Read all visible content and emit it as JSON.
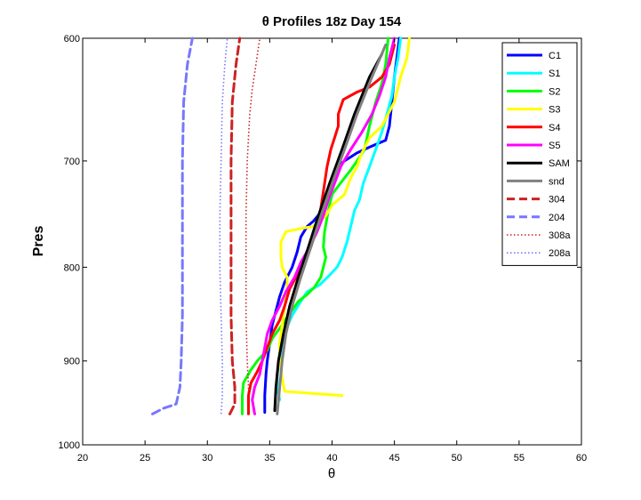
{
  "chart_data": {
    "type": "line",
    "title": "θ Profiles 18z Day 154",
    "xlabel": "θ",
    "ylabel": "Pres",
    "xlim": [
      20,
      60
    ],
    "ylim": [
      600,
      1000
    ],
    "y_axis_reversed": true,
    "y_axis_scale": "log",
    "x_ticks": [
      20,
      25,
      30,
      35,
      40,
      45,
      50,
      55,
      60
    ],
    "y_ticks": [
      600,
      700,
      800,
      900,
      1000
    ],
    "grid": false,
    "legend_position": "top-right",
    "series": [
      {
        "name": "C1",
        "color": "#0000ff",
        "style": "solid",
        "points": [
          [
            34.6,
            960
          ],
          [
            34.6,
            940
          ],
          [
            34.7,
            915
          ],
          [
            34.8,
            900
          ],
          [
            35.0,
            880
          ],
          [
            35.2,
            860
          ],
          [
            35.5,
            845
          ],
          [
            35.8,
            830
          ],
          [
            36.2,
            815
          ],
          [
            36.8,
            800
          ],
          [
            37.2,
            785
          ],
          [
            37.5,
            770
          ],
          [
            38.0,
            760
          ],
          [
            38.5,
            755
          ],
          [
            39.0,
            748
          ],
          [
            39.5,
            735
          ],
          [
            40.0,
            720
          ],
          [
            40.4,
            705
          ],
          [
            41.0,
            700
          ],
          [
            42.0,
            693
          ],
          [
            43.0,
            688
          ],
          [
            44.3,
            682
          ],
          [
            44.6,
            670
          ],
          [
            44.8,
            650
          ],
          [
            45.0,
            630
          ],
          [
            45.2,
            615
          ],
          [
            45.4,
            600
          ]
        ]
      },
      {
        "name": "S1",
        "color": "#00ffff",
        "style": "solid",
        "points": [
          [
            35.8,
            945
          ],
          [
            35.6,
            930
          ],
          [
            35.6,
            915
          ],
          [
            35.8,
            900
          ],
          [
            36.0,
            880
          ],
          [
            36.3,
            865
          ],
          [
            36.8,
            850
          ],
          [
            37.5,
            835
          ],
          [
            38.0,
            825
          ],
          [
            39.0,
            818
          ],
          [
            39.8,
            808
          ],
          [
            40.4,
            800
          ],
          [
            40.8,
            790
          ],
          [
            41.2,
            775
          ],
          [
            41.5,
            760
          ],
          [
            41.8,
            745
          ],
          [
            42.2,
            735
          ],
          [
            42.5,
            720
          ],
          [
            43.0,
            705
          ],
          [
            43.5,
            690
          ],
          [
            44.0,
            675
          ],
          [
            44.4,
            660
          ],
          [
            44.8,
            645
          ],
          [
            45.0,
            630
          ],
          [
            45.3,
            615
          ],
          [
            45.5,
            600
          ]
        ]
      },
      {
        "name": "S2",
        "color": "#00ff00",
        "style": "solid",
        "points": [
          [
            32.8,
            962
          ],
          [
            32.8,
            940
          ],
          [
            32.9,
            925
          ],
          [
            33.5,
            910
          ],
          [
            34.0,
            900
          ],
          [
            34.8,
            888
          ],
          [
            35.2,
            875
          ],
          [
            36.0,
            860
          ],
          [
            36.6,
            848
          ],
          [
            37.3,
            835
          ],
          [
            38.0,
            828
          ],
          [
            38.6,
            820
          ],
          [
            39.1,
            810
          ],
          [
            39.3,
            800
          ],
          [
            39.5,
            790
          ],
          [
            39.3,
            780
          ],
          [
            39.4,
            765
          ],
          [
            39.7,
            745
          ],
          [
            40.0,
            730
          ],
          [
            40.8,
            718
          ],
          [
            41.5,
            708
          ],
          [
            42.0,
            700
          ],
          [
            42.6,
            690
          ],
          [
            43.0,
            670
          ],
          [
            43.5,
            650
          ],
          [
            44.0,
            635
          ],
          [
            44.3,
            620
          ],
          [
            44.5,
            600
          ]
        ]
      },
      {
        "name": "S3",
        "color": "#ffff00",
        "style": "solid",
        "points": [
          [
            40.8,
            940
          ],
          [
            38.0,
            937
          ],
          [
            36.2,
            935
          ],
          [
            36.0,
            920
          ],
          [
            35.8,
            900
          ],
          [
            35.8,
            880
          ],
          [
            36.0,
            860
          ],
          [
            36.2,
            840
          ],
          [
            36.4,
            822
          ],
          [
            36.4,
            810
          ],
          [
            36.0,
            800
          ],
          [
            35.9,
            790
          ],
          [
            35.9,
            775
          ],
          [
            36.3,
            765
          ],
          [
            37.5,
            762
          ],
          [
            38.5,
            760
          ],
          [
            39.5,
            750
          ],
          [
            40.0,
            740
          ],
          [
            41.0,
            730
          ],
          [
            41.5,
            715
          ],
          [
            42.0,
            705
          ],
          [
            42.3,
            695
          ],
          [
            43.0,
            680
          ],
          [
            44.0,
            670
          ],
          [
            45.0,
            650
          ],
          [
            45.5,
            630
          ],
          [
            46.0,
            615
          ],
          [
            46.2,
            600
          ]
        ]
      },
      {
        "name": "S4",
        "color": "#ff0000",
        "style": "solid",
        "points": [
          [
            33.3,
            962
          ],
          [
            33.3,
            940
          ],
          [
            33.5,
            925
          ],
          [
            34.0,
            912
          ],
          [
            34.4,
            900
          ],
          [
            34.8,
            885
          ],
          [
            35.2,
            870
          ],
          [
            35.8,
            855
          ],
          [
            36.2,
            840
          ],
          [
            36.6,
            822
          ],
          [
            37.2,
            808
          ],
          [
            37.8,
            795
          ],
          [
            38.3,
            780
          ],
          [
            38.7,
            765
          ],
          [
            39.0,
            750
          ],
          [
            39.2,
            735
          ],
          [
            39.4,
            720
          ],
          [
            39.6,
            705
          ],
          [
            39.9,
            690
          ],
          [
            40.2,
            680
          ],
          [
            40.5,
            670
          ],
          [
            40.5,
            660
          ],
          [
            40.9,
            648
          ],
          [
            42.0,
            642
          ],
          [
            43.0,
            638
          ],
          [
            44.0,
            630
          ],
          [
            44.6,
            620
          ],
          [
            45.0,
            605
          ]
        ]
      },
      {
        "name": "S5",
        "color": "#ff00ff",
        "style": "solid",
        "points": [
          [
            33.8,
            962
          ],
          [
            33.6,
            945
          ],
          [
            33.8,
            930
          ],
          [
            34.2,
            915
          ],
          [
            34.4,
            900
          ],
          [
            34.6,
            885
          ],
          [
            34.8,
            870
          ],
          [
            35.2,
            855
          ],
          [
            35.8,
            840
          ],
          [
            36.3,
            825
          ],
          [
            37.0,
            810
          ],
          [
            37.5,
            795
          ],
          [
            38.2,
            780
          ],
          [
            38.8,
            765
          ],
          [
            39.3,
            750
          ],
          [
            39.7,
            735
          ],
          [
            40.2,
            720
          ],
          [
            40.7,
            705
          ],
          [
            41.5,
            690
          ],
          [
            42.4,
            675
          ],
          [
            43.2,
            660
          ],
          [
            43.8,
            645
          ],
          [
            44.3,
            630
          ],
          [
            44.6,
            615
          ],
          [
            45.0,
            600
          ]
        ]
      },
      {
        "name": "SAM",
        "color": "#000000",
        "style": "solid",
        "points": [
          [
            35.4,
            958
          ],
          [
            35.5,
            930
          ],
          [
            35.7,
            900
          ],
          [
            36.1,
            870
          ],
          [
            36.6,
            840
          ],
          [
            37.3,
            810
          ],
          [
            38.1,
            780
          ],
          [
            38.9,
            750
          ],
          [
            39.8,
            720
          ],
          [
            40.8,
            690
          ],
          [
            41.8,
            660
          ],
          [
            43.0,
            630
          ],
          [
            44.0,
            612
          ]
        ]
      },
      {
        "name": "snd",
        "color": "#808080",
        "style": "solid",
        "points": [
          [
            35.6,
            962
          ],
          [
            35.8,
            930
          ],
          [
            36.0,
            900
          ],
          [
            36.3,
            870
          ],
          [
            36.8,
            840
          ],
          [
            37.5,
            810
          ],
          [
            38.3,
            780
          ],
          [
            39.1,
            750
          ],
          [
            40.0,
            720
          ],
          [
            41.0,
            690
          ],
          [
            42.0,
            660
          ],
          [
            43.2,
            630
          ],
          [
            44.3,
            605
          ]
        ]
      },
      {
        "name": "304",
        "color": "#cc2222",
        "style": "dashed",
        "points": [
          [
            31.8,
            962
          ],
          [
            32.2,
            950
          ],
          [
            32.2,
            930
          ],
          [
            32.0,
            900
          ],
          [
            31.9,
            850
          ],
          [
            31.9,
            800
          ],
          [
            31.9,
            750
          ],
          [
            31.9,
            700
          ],
          [
            32.0,
            650
          ],
          [
            32.3,
            620
          ],
          [
            32.6,
            600
          ]
        ]
      },
      {
        "name": "204",
        "color": "#7777ff",
        "style": "dashed",
        "points": [
          [
            25.6,
            962
          ],
          [
            26.5,
            955
          ],
          [
            27.5,
            950
          ],
          [
            27.8,
            930
          ],
          [
            27.9,
            900
          ],
          [
            28.0,
            850
          ],
          [
            28.0,
            800
          ],
          [
            28.0,
            750
          ],
          [
            28.0,
            700
          ],
          [
            28.1,
            650
          ],
          [
            28.4,
            620
          ],
          [
            28.8,
            600
          ]
        ]
      },
      {
        "name": "308a",
        "color": "#cc2222",
        "style": "dotted",
        "points": [
          [
            33.3,
            962
          ],
          [
            33.3,
            930
          ],
          [
            33.2,
            900
          ],
          [
            33.1,
            850
          ],
          [
            33.1,
            800
          ],
          [
            33.1,
            750
          ],
          [
            33.2,
            700
          ],
          [
            33.4,
            660
          ],
          [
            33.6,
            640
          ],
          [
            33.9,
            620
          ],
          [
            34.2,
            600
          ]
        ]
      },
      {
        "name": "208a",
        "color": "#7777ff",
        "style": "dotted",
        "points": [
          [
            31.1,
            962
          ],
          [
            31.2,
            940
          ],
          [
            31.2,
            900
          ],
          [
            31.1,
            850
          ],
          [
            31.0,
            800
          ],
          [
            31.0,
            750
          ],
          [
            31.1,
            700
          ],
          [
            31.2,
            650
          ],
          [
            31.4,
            620
          ],
          [
            31.6,
            600
          ]
        ]
      }
    ]
  }
}
